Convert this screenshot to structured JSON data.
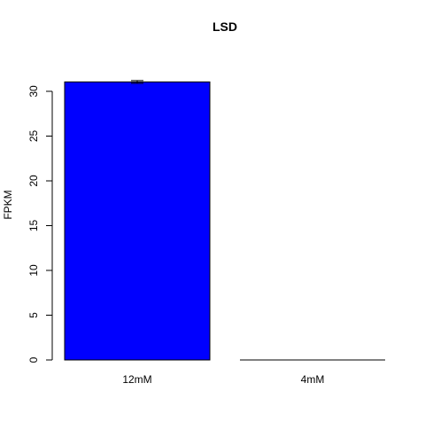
{
  "chart_data": {
    "type": "bar",
    "title": "LSD",
    "xlabel": "",
    "ylabel": "FPKM",
    "categories": [
      "12mM",
      "4mM"
    ],
    "values": [
      31.05,
      0.0
    ],
    "error": [
      0.15,
      0.0
    ],
    "ylim": [
      0,
      31.5
    ],
    "yticks": [
      0,
      5,
      10,
      15,
      20,
      25,
      30
    ],
    "colors": {
      "bar_fill": "#0000ff",
      "bar_stroke": "#000000",
      "axis": "#000000"
    },
    "grid": false,
    "legend": "none"
  }
}
